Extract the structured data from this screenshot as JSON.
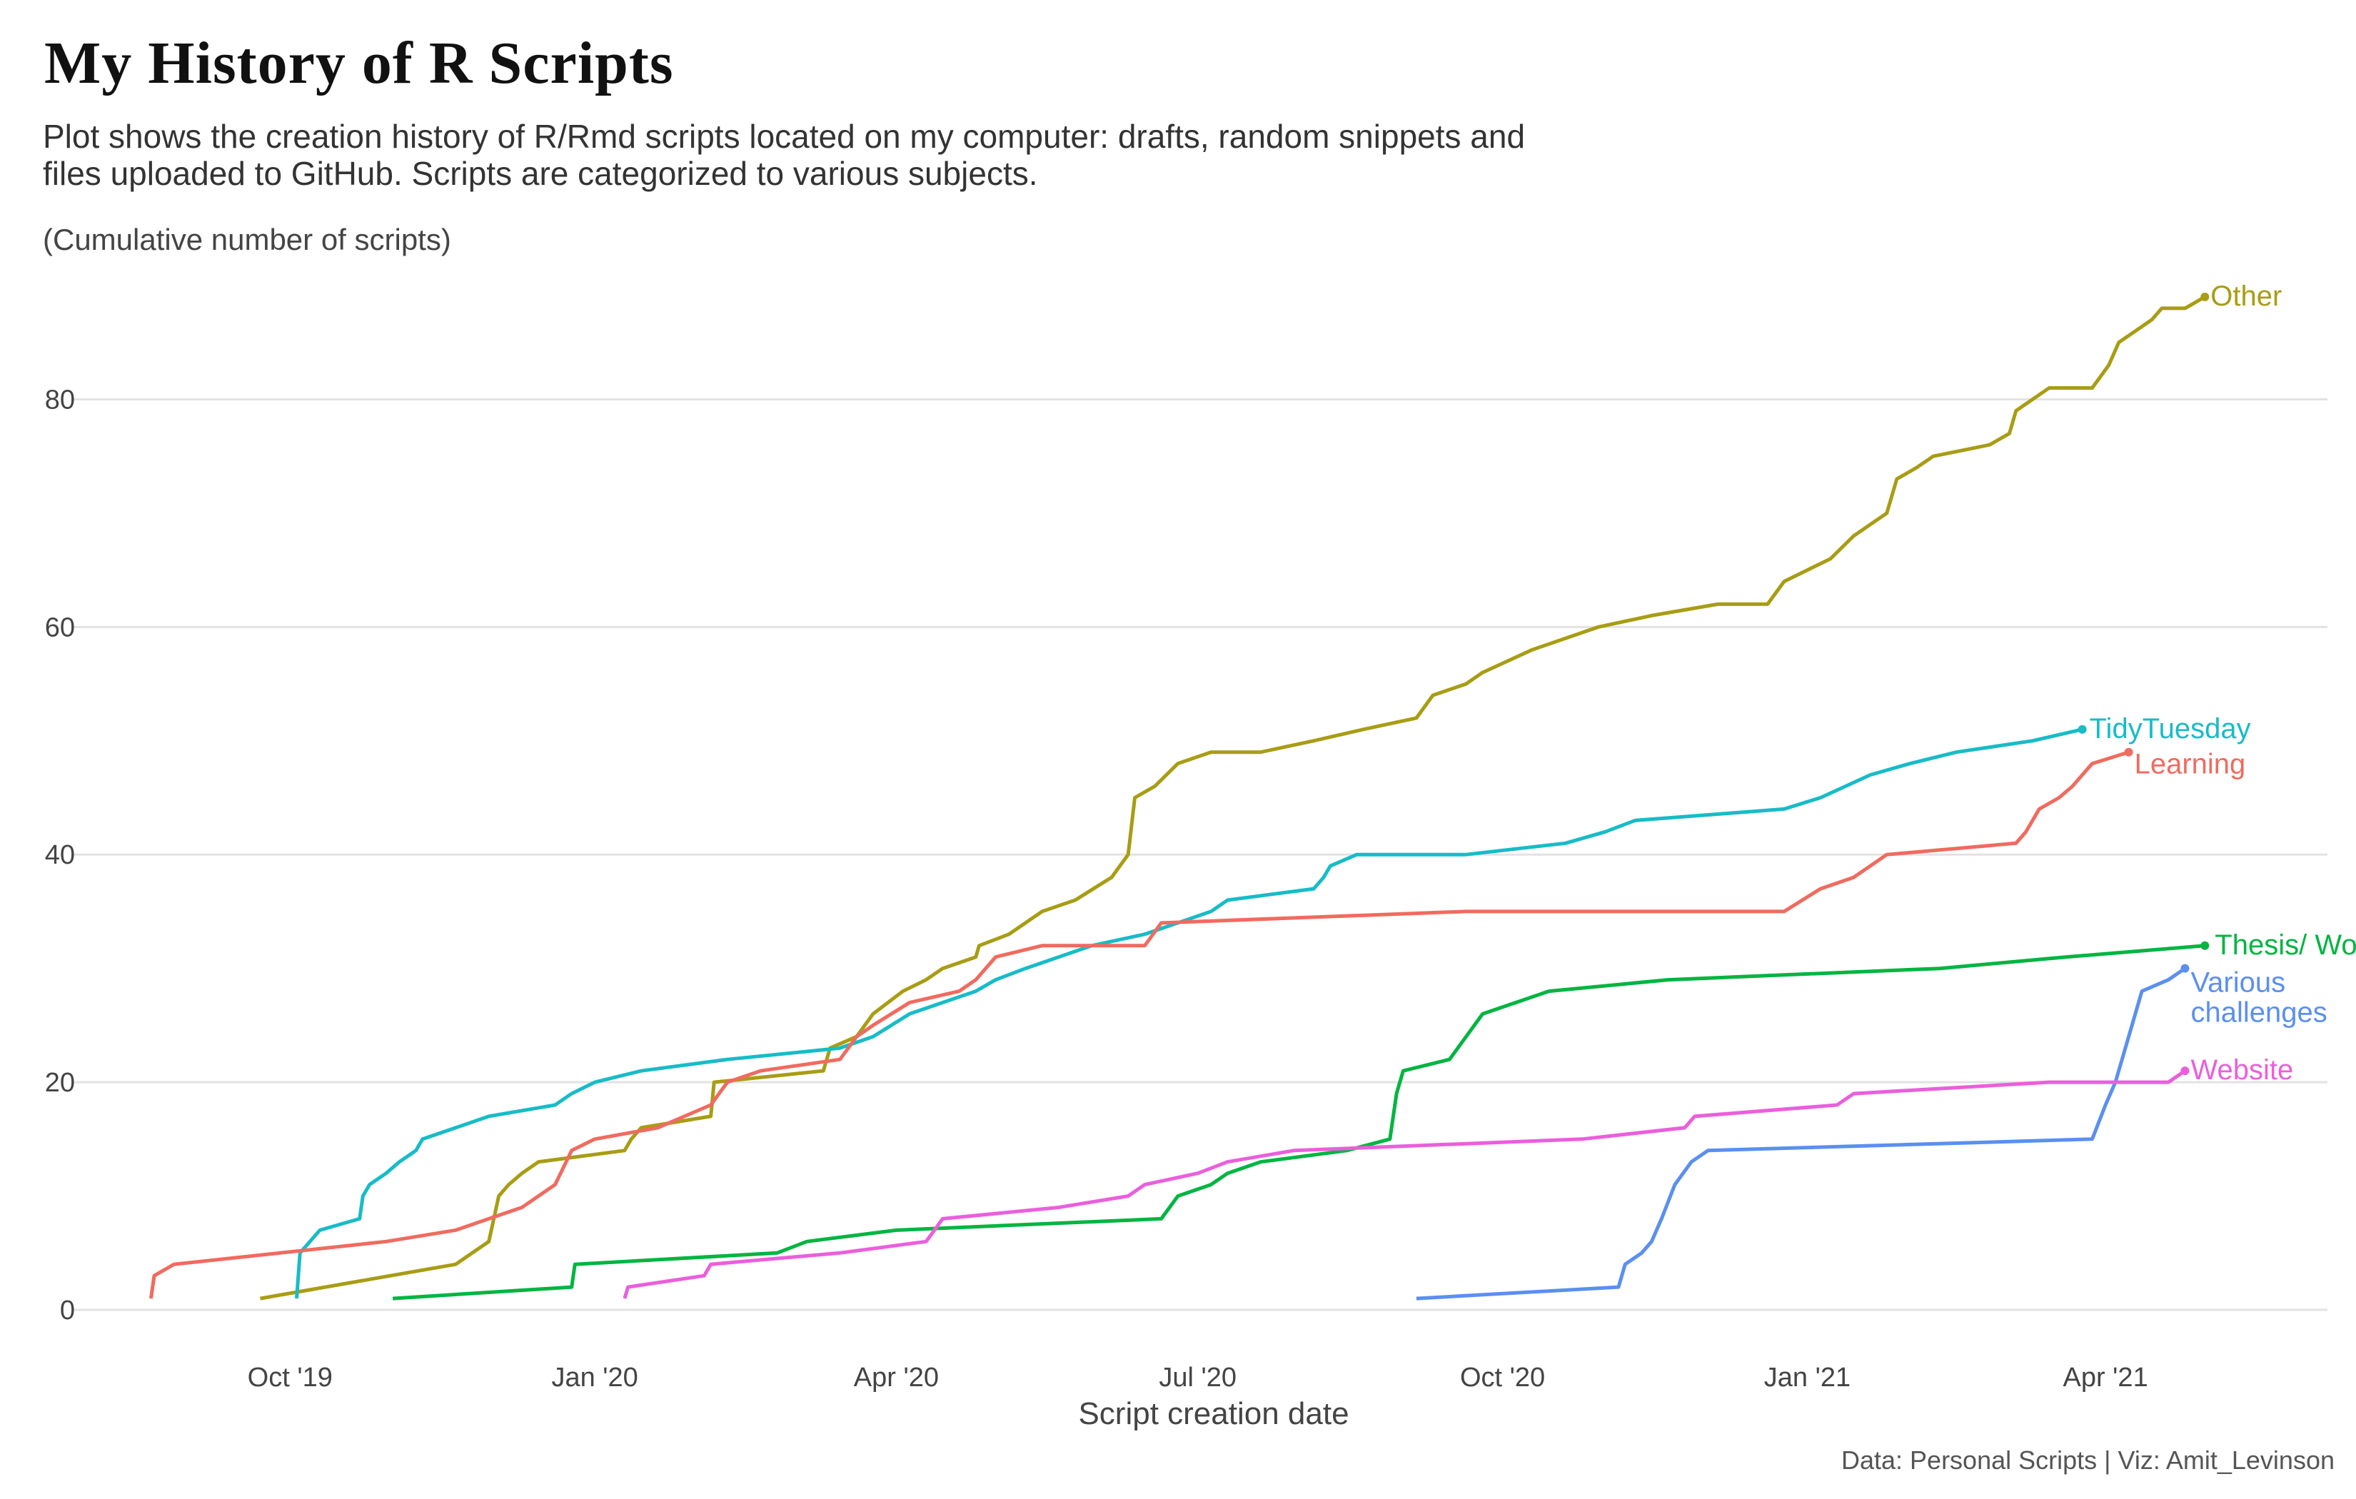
{
  "chart_data": {
    "type": "line",
    "title": "My History of R Scripts",
    "subtitle": "Plot shows the creation history of R/Rmd scripts located on my computer: drafts, random snippets and files uploaded to GitHub. Scripts are categorized to various subjects.",
    "ylabel": "(Cumulative number of scripts)",
    "xlabel": "Script creation date",
    "caption": "Data: Personal Scripts | Viz: Amit_Levinson",
    "ylim": [
      0,
      90
    ],
    "y_ticks": [
      0,
      20,
      40,
      60,
      80
    ],
    "xlim": [
      "2019-07-27",
      "2021-06-07"
    ],
    "x_ticks": [
      {
        "date": "2019-10-01",
        "label": "Oct '19"
      },
      {
        "date": "2020-01-01",
        "label": "Jan '20"
      },
      {
        "date": "2020-04-01",
        "label": "Apr '20"
      },
      {
        "date": "2020-07-01",
        "label": "Jul '20"
      },
      {
        "date": "2020-10-01",
        "label": "Oct '20"
      },
      {
        "date": "2021-01-01",
        "label": "Jan '21"
      },
      {
        "date": "2021-04-01",
        "label": "Apr '21"
      }
    ],
    "grid": true,
    "legend": "direct labels at line ends",
    "series": [
      {
        "name": "Other",
        "color": "#a89d14",
        "points": [
          [
            "2019-09-22",
            1
          ],
          [
            "2019-11-20",
            4
          ],
          [
            "2019-11-30",
            6
          ],
          [
            "2019-12-03",
            10
          ],
          [
            "2019-12-06",
            11
          ],
          [
            "2019-12-10",
            12
          ],
          [
            "2019-12-15",
            13
          ],
          [
            "2020-01-10",
            14
          ],
          [
            "2020-01-12",
            15
          ],
          [
            "2020-01-15",
            16
          ],
          [
            "2020-02-05",
            17
          ],
          [
            "2020-02-06",
            20
          ],
          [
            "2020-03-10",
            21
          ],
          [
            "2020-03-12",
            23
          ],
          [
            "2020-03-20",
            24
          ],
          [
            "2020-03-25",
            26
          ],
          [
            "2020-04-03",
            28
          ],
          [
            "2020-04-10",
            29
          ],
          [
            "2020-04-15",
            30
          ],
          [
            "2020-04-25",
            31
          ],
          [
            "2020-04-26",
            32
          ],
          [
            "2020-05-05",
            33
          ],
          [
            "2020-05-15",
            35
          ],
          [
            "2020-05-25",
            36
          ],
          [
            "2020-06-05",
            38
          ],
          [
            "2020-06-10",
            40
          ],
          [
            "2020-06-12",
            45
          ],
          [
            "2020-06-18",
            46
          ],
          [
            "2020-06-25",
            48
          ],
          [
            "2020-07-05",
            49
          ],
          [
            "2020-07-20",
            49
          ],
          [
            "2020-08-05",
            50
          ],
          [
            "2020-08-20",
            51
          ],
          [
            "2020-09-05",
            52
          ],
          [
            "2020-09-10",
            54
          ],
          [
            "2020-09-20",
            55
          ],
          [
            "2020-09-25",
            56
          ],
          [
            "2020-10-10",
            58
          ],
          [
            "2020-10-20",
            59
          ],
          [
            "2020-10-30",
            60
          ],
          [
            "2020-11-15",
            61
          ],
          [
            "2020-12-05",
            62
          ],
          [
            "2020-12-20",
            62
          ],
          [
            "2020-12-25",
            64
          ],
          [
            "2021-01-01",
            65
          ],
          [
            "2021-01-08",
            66
          ],
          [
            "2021-01-15",
            68
          ],
          [
            "2021-01-20",
            69
          ],
          [
            "2021-01-25",
            70
          ],
          [
            "2021-01-28",
            73
          ],
          [
            "2021-02-03",
            74
          ],
          [
            "2021-02-08",
            75
          ],
          [
            "2021-02-25",
            76
          ],
          [
            "2021-03-03",
            77
          ],
          [
            "2021-03-05",
            79
          ],
          [
            "2021-03-10",
            80
          ],
          [
            "2021-03-15",
            81
          ],
          [
            "2021-03-28",
            81
          ],
          [
            "2021-04-02",
            83
          ],
          [
            "2021-04-05",
            85
          ],
          [
            "2021-04-10",
            86
          ],
          [
            "2021-04-15",
            87
          ],
          [
            "2021-04-18",
            88
          ],
          [
            "2021-04-25",
            88
          ],
          [
            "2021-05-01",
            89
          ]
        ]
      },
      {
        "name": "TidyTuesday",
        "color": "#17bcc7",
        "points": [
          [
            "2019-10-03",
            1
          ],
          [
            "2019-10-04",
            5
          ],
          [
            "2019-10-10",
            7
          ],
          [
            "2019-10-22",
            8
          ],
          [
            "2019-10-23",
            10
          ],
          [
            "2019-10-25",
            11
          ],
          [
            "2019-10-30",
            12
          ],
          [
            "2019-11-03",
            13
          ],
          [
            "2019-11-08",
            14
          ],
          [
            "2019-11-10",
            15
          ],
          [
            "2019-11-20",
            16
          ],
          [
            "2019-11-30",
            17
          ],
          [
            "2019-12-20",
            18
          ],
          [
            "2019-12-25",
            19
          ],
          [
            "2020-01-01",
            20
          ],
          [
            "2020-01-15",
            21
          ],
          [
            "2020-02-10",
            22
          ],
          [
            "2020-03-15",
            23
          ],
          [
            "2020-03-25",
            24
          ],
          [
            "2020-04-05",
            26
          ],
          [
            "2020-04-15",
            27
          ],
          [
            "2020-04-25",
            28
          ],
          [
            "2020-05-01",
            29
          ],
          [
            "2020-05-10",
            30
          ],
          [
            "2020-05-20",
            31
          ],
          [
            "2020-05-30",
            32
          ],
          [
            "2020-06-15",
            33
          ],
          [
            "2020-06-25",
            34
          ],
          [
            "2020-07-05",
            35
          ],
          [
            "2020-07-10",
            36
          ],
          [
            "2020-08-05",
            37
          ],
          [
            "2020-08-08",
            38
          ],
          [
            "2020-08-10",
            39
          ],
          [
            "2020-08-18",
            40
          ],
          [
            "2020-09-20",
            40
          ],
          [
            "2020-10-20",
            41
          ],
          [
            "2020-11-01",
            42
          ],
          [
            "2020-11-10",
            43
          ],
          [
            "2020-12-25",
            44
          ],
          [
            "2021-01-05",
            45
          ],
          [
            "2021-01-20",
            47
          ],
          [
            "2021-02-01",
            48
          ],
          [
            "2021-02-15",
            49
          ],
          [
            "2021-03-10",
            50
          ],
          [
            "2021-03-25",
            51
          ]
        ]
      },
      {
        "name": "Learning",
        "color": "#f06b5f",
        "points": [
          [
            "2019-08-20",
            1
          ],
          [
            "2019-08-21",
            3
          ],
          [
            "2019-08-27",
            4
          ],
          [
            "2019-10-30",
            6
          ],
          [
            "2019-11-20",
            7
          ],
          [
            "2019-11-30",
            8
          ],
          [
            "2019-12-10",
            9
          ],
          [
            "2019-12-20",
            11
          ],
          [
            "2019-12-25",
            14
          ],
          [
            "2020-01-01",
            15
          ],
          [
            "2020-01-20",
            16
          ],
          [
            "2020-02-05",
            18
          ],
          [
            "2020-02-10",
            20
          ],
          [
            "2020-02-20",
            21
          ],
          [
            "2020-03-15",
            22
          ],
          [
            "2020-03-20",
            24
          ],
          [
            "2020-03-25",
            25
          ],
          [
            "2020-04-05",
            27
          ],
          [
            "2020-04-20",
            28
          ],
          [
            "2020-04-25",
            29
          ],
          [
            "2020-05-01",
            31
          ],
          [
            "2020-05-15",
            32
          ],
          [
            "2020-06-15",
            32
          ],
          [
            "2020-06-20",
            34
          ],
          [
            "2020-09-20",
            35
          ],
          [
            "2020-12-25",
            35
          ],
          [
            "2021-01-05",
            37
          ],
          [
            "2021-01-15",
            38
          ],
          [
            "2021-01-20",
            39
          ],
          [
            "2021-01-25",
            40
          ],
          [
            "2021-03-05",
            41
          ],
          [
            "2021-03-08",
            42
          ],
          [
            "2021-03-12",
            44
          ],
          [
            "2021-03-18",
            45
          ],
          [
            "2021-03-22",
            46
          ],
          [
            "2021-03-28",
            48
          ],
          [
            "2021-04-08",
            49
          ]
        ]
      },
      {
        "name": "Thesis/ Work",
        "color": "#00b541",
        "points": [
          [
            "2019-11-01",
            1
          ],
          [
            "2019-12-25",
            2
          ],
          [
            "2019-12-26",
            4
          ],
          [
            "2020-02-25",
            5
          ],
          [
            "2020-03-05",
            6
          ],
          [
            "2020-04-01",
            7
          ],
          [
            "2020-06-20",
            8
          ],
          [
            "2020-06-25",
            10
          ],
          [
            "2020-07-05",
            11
          ],
          [
            "2020-07-10",
            12
          ],
          [
            "2020-07-20",
            13
          ],
          [
            "2020-08-15",
            14
          ],
          [
            "2020-08-28",
            15
          ],
          [
            "2020-08-29",
            17
          ],
          [
            "2020-08-30",
            19
          ],
          [
            "2020-09-01",
            21
          ],
          [
            "2020-09-15",
            22
          ],
          [
            "2020-09-20",
            24
          ],
          [
            "2020-09-25",
            26
          ],
          [
            "2020-10-05",
            27
          ],
          [
            "2020-10-15",
            28
          ],
          [
            "2020-11-20",
            29
          ],
          [
            "2021-02-10",
            30
          ],
          [
            "2021-03-20",
            31
          ],
          [
            "2021-05-01",
            32
          ]
        ]
      },
      {
        "name": "Various challenges",
        "color": "#5b8ff0",
        "points": [
          [
            "2020-09-05",
            1
          ],
          [
            "2020-11-05",
            2
          ],
          [
            "2020-11-07",
            4
          ],
          [
            "2020-11-12",
            5
          ],
          [
            "2020-11-15",
            6
          ],
          [
            "2020-11-18",
            8
          ],
          [
            "2020-11-22",
            11
          ],
          [
            "2020-11-27",
            13
          ],
          [
            "2020-12-02",
            14
          ],
          [
            "2021-03-28",
            15
          ],
          [
            "2021-04-01",
            18
          ],
          [
            "2021-04-04",
            20
          ],
          [
            "2021-04-08",
            24
          ],
          [
            "2021-04-12",
            28
          ],
          [
            "2021-04-20",
            29
          ],
          [
            "2021-04-25",
            30
          ]
        ]
      },
      {
        "name": "Website",
        "color": "#ea5fdc",
        "points": [
          [
            "2020-01-10",
            1
          ],
          [
            "2020-01-11",
            2
          ],
          [
            "2020-02-03",
            3
          ],
          [
            "2020-02-05",
            4
          ],
          [
            "2020-03-15",
            5
          ],
          [
            "2020-04-10",
            6
          ],
          [
            "2020-04-15",
            8
          ],
          [
            "2020-05-20",
            9
          ],
          [
            "2020-06-10",
            10
          ],
          [
            "2020-06-15",
            11
          ],
          [
            "2020-07-01",
            12
          ],
          [
            "2020-07-10",
            13
          ],
          [
            "2020-07-30",
            14
          ],
          [
            "2020-10-25",
            15
          ],
          [
            "2020-11-25",
            16
          ],
          [
            "2020-11-28",
            17
          ],
          [
            "2021-01-10",
            18
          ],
          [
            "2021-01-15",
            19
          ],
          [
            "2021-03-15",
            20
          ],
          [
            "2021-04-20",
            20
          ],
          [
            "2021-04-25",
            21
          ]
        ]
      }
    ]
  }
}
